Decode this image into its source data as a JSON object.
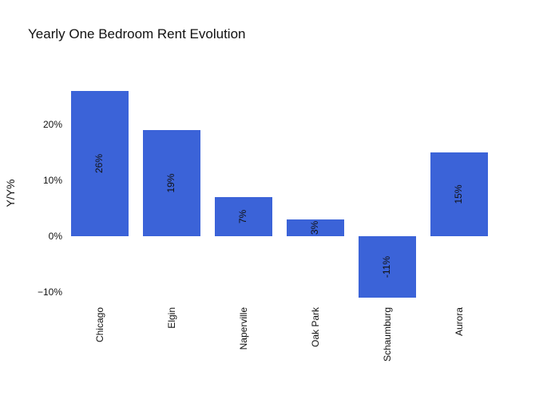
{
  "chart_data": {
    "type": "bar",
    "title": "Yearly One Bedroom Rent Evolution",
    "xlabel": "",
    "ylabel": "Y/Y%",
    "categories": [
      "Chicago",
      "Elgin",
      "Naperville",
      "Oak Park",
      "Schaumburg",
      "Aurora"
    ],
    "values": [
      26,
      19,
      7,
      3,
      -11,
      15
    ],
    "value_labels": [
      "26%",
      "19%",
      "7%",
      "3%",
      "-11%",
      "15%"
    ],
    "yticks": [
      -10,
      0,
      10,
      20
    ],
    "ytick_labels": [
      "−10%",
      "0%",
      "10%",
      "20%"
    ],
    "ylim": [
      -12,
      28
    ],
    "grid": false,
    "bar_color": "#3b63d8"
  }
}
